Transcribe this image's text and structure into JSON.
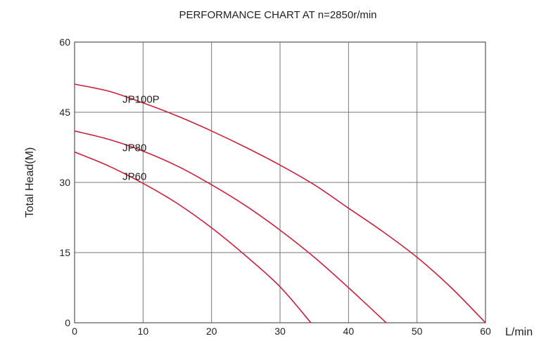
{
  "chart_data": {
    "type": "line",
    "title": "PERFORMANCE CHART AT n=2850r/min",
    "xlabel": "L/min",
    "ylabel": "Total Head(M)",
    "xlim": [
      0,
      60
    ],
    "ylim": [
      0,
      60
    ],
    "x_ticks": [
      "0",
      "10",
      "20",
      "30",
      "40",
      "50",
      "60"
    ],
    "y_ticks": [
      "0",
      "15",
      "30",
      "45",
      "60"
    ],
    "grid": true,
    "curve_color": "#cc1f3a",
    "series": [
      {
        "name": "JP100P",
        "x": [
          0,
          5,
          10,
          15,
          20,
          25,
          30,
          35,
          40,
          45,
          50,
          55,
          60
        ],
        "y": [
          51,
          49.5,
          47,
          44.2,
          41,
          37.5,
          33.7,
          29.5,
          24.5,
          19.5,
          14,
          7.5,
          0
        ]
      },
      {
        "name": "JP80",
        "x": [
          0,
          5,
          10,
          15,
          20,
          25,
          30,
          35,
          40,
          45.5
        ],
        "y": [
          41,
          39.2,
          36.7,
          33.5,
          29.5,
          25,
          19.8,
          14,
          7.5,
          0
        ]
      },
      {
        "name": "JP60",
        "x": [
          0,
          5,
          10,
          15,
          20,
          25,
          30,
          34.5
        ],
        "y": [
          36.5,
          33.5,
          29.8,
          25.5,
          20.3,
          14.3,
          7.7,
          0
        ]
      }
    ]
  }
}
